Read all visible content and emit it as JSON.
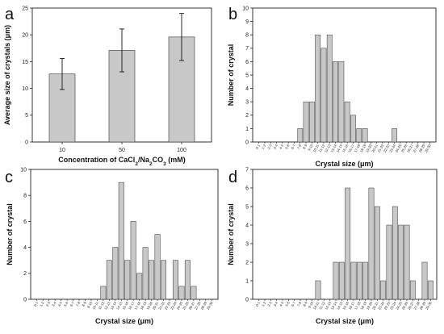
{
  "colors": {
    "bar_fill": "#c8c8c8",
    "bar_stroke": "#333333",
    "axis": "#222222",
    "page": "#ffffff"
  },
  "chart_data": [
    {
      "id": "a",
      "panel_label": "a",
      "type": "bar",
      "categories": [
        "10",
        "50",
        "100"
      ],
      "values": [
        12.7,
        17.1,
        19.6
      ],
      "error": [
        2.9,
        4.0,
        4.4
      ],
      "ylabel": "Average size of crystals (μm)",
      "xlabel_parts": [
        "Concentration of CaCl",
        "2",
        "/Na",
        "2",
        "CO",
        "3",
        " (mM)"
      ],
      "ylim": [
        0,
        25
      ],
      "yticks": [
        "0",
        "5",
        "10",
        "15",
        "20",
        "25"
      ],
      "grid": false
    },
    {
      "id": "b",
      "panel_label": "b",
      "type": "bar",
      "categories": [
        "0-1",
        "1-2",
        "2-3",
        "3-4",
        "4-5",
        "5-6",
        "6-7",
        "7-8",
        "8-9",
        "9-10",
        "10-11",
        "11-12",
        "12-13",
        "13-14",
        "14-15",
        "15-16",
        "16-17",
        "17-18",
        "18-19",
        "19-20",
        "20-21",
        "21-22",
        "22-23",
        "23-24",
        "24-25",
        "25-26",
        "26-27",
        "27-28",
        "28-29",
        "29-30"
      ],
      "values": [
        0,
        0,
        0,
        0,
        0,
        0,
        0,
        1,
        3,
        3,
        8,
        7,
        8,
        6,
        6,
        3,
        2,
        1,
        1,
        0,
        0,
        0,
        0,
        1,
        0,
        0,
        0,
        0,
        0,
        0
      ],
      "ylabel": "Number of crystal",
      "xlabel": "Crystal size (μm)",
      "ylim": [
        0,
        10
      ],
      "yticks": [
        "0",
        "1",
        "2",
        "3",
        "4",
        "5",
        "6",
        "7",
        "8",
        "9",
        "10"
      ],
      "grid": false
    },
    {
      "id": "c",
      "panel_label": "c",
      "type": "bar",
      "categories": [
        "0-1",
        "1-2",
        "2-3",
        "3-4",
        "4-5",
        "5-6",
        "6-7",
        "7-8",
        "8-9",
        "9-10",
        "10-11",
        "11-12",
        "12-13",
        "13-14",
        "14-15",
        "15-16",
        "16-17",
        "17-18",
        "18-19",
        "19-20",
        "20-21",
        "21-22",
        "22-23",
        "23-24",
        "24-25",
        "25-26",
        "26-27",
        "27-28",
        "28-29",
        "29-30"
      ],
      "values": [
        0,
        0,
        0,
        0,
        0,
        0,
        0,
        0,
        0,
        0,
        0,
        1,
        3,
        4,
        9,
        3,
        6,
        2,
        4,
        3,
        5,
        3,
        0,
        3,
        1,
        3,
        1,
        0,
        0,
        0
      ],
      "ylabel": "Number of crystal",
      "xlabel": "Crystal size (μm)",
      "ylim": [
        0,
        10
      ],
      "yticks": [
        "0",
        "2",
        "4",
        "6",
        "8",
        "10"
      ],
      "grid": false
    },
    {
      "id": "d",
      "panel_label": "d",
      "type": "bar",
      "categories": [
        "0-1",
        "1-2",
        "2-3",
        "3-4",
        "4-5",
        "5-6",
        "6-7",
        "7-8",
        "8-9",
        "9-10",
        "10-11",
        "11-12",
        "12-13",
        "13-14",
        "14-15",
        "15-16",
        "16-17",
        "17-18",
        "18-19",
        "19-20",
        "20-21",
        "21-22",
        "22-23",
        "23-24",
        "24-25",
        "25-26",
        "26-27",
        "27-28",
        "28-29",
        "29-30"
      ],
      "values": [
        0,
        0,
        0,
        0,
        0,
        0,
        0,
        0,
        0,
        0,
        1,
        0,
        0,
        2,
        2,
        6,
        2,
        2,
        2,
        6,
        5,
        1,
        4,
        5,
        4,
        4,
        1,
        0,
        2,
        1
      ],
      "ylabel": "Number of crystal",
      "xlabel": "Crystal size (μm)",
      "ylim": [
        0,
        7
      ],
      "yticks": [
        "0",
        "1",
        "2",
        "3",
        "4",
        "5",
        "6",
        "7"
      ],
      "grid": false
    }
  ]
}
